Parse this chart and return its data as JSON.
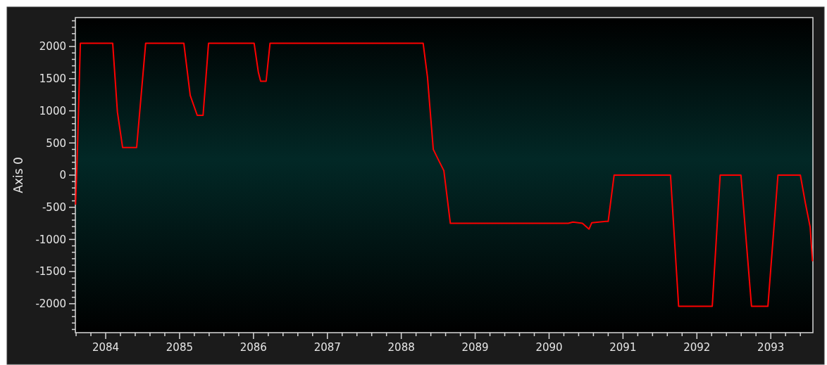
{
  "chart_data": {
    "type": "line",
    "ylabel": "Axis 0",
    "x": [
      2083.593,
      2083.619,
      2083.657,
      2084.095,
      2084.159,
      2084.229,
      2084.419,
      2084.541,
      2085.058,
      2085.144,
      2085.239,
      2085.318,
      2085.392,
      2086.009,
      2086.066,
      2086.097,
      2086.171,
      2086.224,
      2088.296,
      2088.354,
      2088.433,
      2088.497,
      2088.576,
      2088.664,
      2090.26,
      2090.323,
      2090.451,
      2090.54,
      2090.578,
      2090.769,
      2090.8,
      2090.88,
      2091.643,
      2091.753,
      2092.208,
      2092.315,
      2092.596,
      2092.739,
      2092.961,
      2093.097,
      2093.4,
      2093.469,
      2093.533,
      2093.564
    ],
    "series": [
      {
        "color": "#ff0000",
        "values": [
          -460,
          430,
          2050,
          2050,
          980,
          430,
          430,
          2050,
          2050,
          1240,
          930,
          930,
          2050,
          2050,
          1600,
          1460,
          1460,
          2050,
          2050,
          1530,
          400,
          250,
          70,
          -750,
          -750,
          -730,
          -750,
          -840,
          -740,
          -720,
          -720,
          0,
          0,
          -2040,
          -2040,
          0,
          0,
          -2040,
          -2040,
          0,
          0,
          -440,
          -810,
          -1340
        ]
      }
    ],
    "xlim": [
      2083.59,
      2093.57
    ],
    "ylim": [
      -2450,
      2450
    ],
    "xticks": [
      {
        "value": 2083.6,
        "label": null
      },
      {
        "value": 2083.8,
        "label": null
      },
      2084,
      {
        "value": 2084.2,
        "label": null
      },
      {
        "value": 2084.4,
        "label": null
      },
      {
        "value": 2084.6,
        "label": null
      },
      {
        "value": 2084.8,
        "label": null
      },
      2085,
      {
        "value": 2085.2,
        "label": null
      },
      {
        "value": 2085.4,
        "label": null
      },
      {
        "value": 2085.6,
        "label": null
      },
      {
        "value": 2085.8,
        "label": null
      },
      2086,
      {
        "value": 2086.2,
        "label": null
      },
      {
        "value": 2086.4,
        "label": null
      },
      {
        "value": 2086.6,
        "label": null
      },
      {
        "value": 2086.8,
        "label": null
      },
      2087,
      {
        "value": 2087.2,
        "label": null
      },
      {
        "value": 2087.4,
        "label": null
      },
      {
        "value": 2087.6,
        "label": null
      },
      {
        "value": 2087.8,
        "label": null
      },
      2088,
      {
        "value": 2088.2,
        "label": null
      },
      {
        "value": 2088.4,
        "label": null
      },
      {
        "value": 2088.6,
        "label": null
      },
      {
        "value": 2088.8,
        "label": null
      },
      2089,
      {
        "value": 2089.2,
        "label": null
      },
      {
        "value": 2089.4,
        "label": null
      },
      {
        "value": 2089.6,
        "label": null
      },
      {
        "value": 2089.8,
        "label": null
      },
      2090,
      {
        "value": 2090.2,
        "label": null
      },
      {
        "value": 2090.4,
        "label": null
      },
      {
        "value": 2090.6,
        "label": null
      },
      {
        "value": 2090.8,
        "label": null
      },
      2091,
      {
        "value": 2091.2,
        "label": null
      },
      {
        "value": 2091.4,
        "label": null
      },
      {
        "value": 2091.6,
        "label": null
      },
      {
        "value": 2091.8,
        "label": null
      },
      2092,
      {
        "value": 2092.2,
        "label": null
      },
      {
        "value": 2092.4,
        "label": null
      },
      {
        "value": 2092.6,
        "label": null
      },
      {
        "value": 2092.8,
        "label": null
      },
      2093,
      {
        "value": 2093.2,
        "label": null
      },
      {
        "value": 2093.4,
        "label": null
      }
    ],
    "yticks": [
      {
        "value": -2400,
        "label": null
      },
      {
        "value": -2300,
        "label": null
      },
      {
        "value": -2200,
        "label": null
      },
      {
        "value": -2100,
        "label": null
      },
      -2000,
      {
        "value": -1900,
        "label": null
      },
      {
        "value": -1800,
        "label": null
      },
      {
        "value": -1700,
        "label": null
      },
      {
        "value": -1600,
        "label": null
      },
      -1500,
      {
        "value": -1400,
        "label": null
      },
      {
        "value": -1300,
        "label": null
      },
      {
        "value": -1200,
        "label": null
      },
      {
        "value": -1100,
        "label": null
      },
      -1000,
      {
        "value": -900,
        "label": null
      },
      {
        "value": -800,
        "label": null
      },
      {
        "value": -700,
        "label": null
      },
      {
        "value": -600,
        "label": null
      },
      -500,
      {
        "value": -400,
        "label": null
      },
      {
        "value": -300,
        "label": null
      },
      {
        "value": -200,
        "label": null
      },
      {
        "value": -100,
        "label": null
      },
      0,
      {
        "value": 100,
        "label": null
      },
      {
        "value": 200,
        "label": null
      },
      {
        "value": 300,
        "label": null
      },
      {
        "value": 400,
        "label": null
      },
      500,
      {
        "value": 600,
        "label": null
      },
      {
        "value": 700,
        "label": null
      },
      {
        "value": 800,
        "label": null
      },
      {
        "value": 900,
        "label": null
      },
      1000,
      {
        "value": 1100,
        "label": null
      },
      {
        "value": 1200,
        "label": null
      },
      {
        "value": 1300,
        "label": null
      },
      {
        "value": 1400,
        "label": null
      },
      1500,
      {
        "value": 1600,
        "label": null
      },
      {
        "value": 1700,
        "label": null
      },
      {
        "value": 1800,
        "label": null
      },
      {
        "value": 1900,
        "label": null
      },
      2000,
      {
        "value": 2100,
        "label": null
      },
      {
        "value": 2200,
        "label": null
      },
      {
        "value": 2300,
        "label": null
      },
      {
        "value": 2400,
        "label": null
      }
    ],
    "grid": false
  }
}
